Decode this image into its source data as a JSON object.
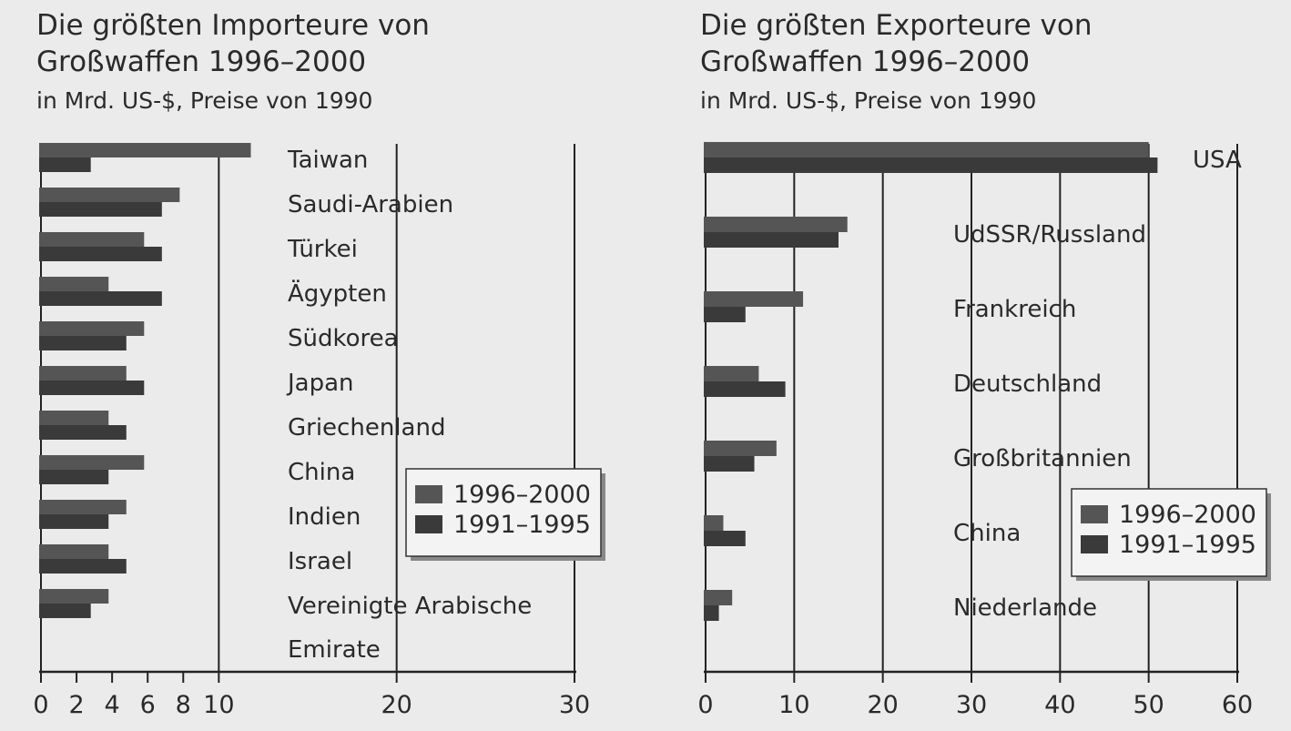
{
  "chart_data": [
    {
      "type": "bar",
      "orientation": "horizontal",
      "title": "Die größten Importeure von Großwaffen 1996–2000",
      "subtitle": "in Mrd. US-$, Preise von 1990",
      "categories": [
        "Taiwan",
        "Saudi-Arabien",
        "Türkei",
        "Ägypten",
        "Südkorea",
        "Japan",
        "Griechenland",
        "China",
        "Indien",
        "Israel",
        "Vereinigte Arabische Emirate"
      ],
      "category_label_lines": [
        [
          "Taiwan"
        ],
        [
          "Saudi-Arabien"
        ],
        [
          "Türkei"
        ],
        [
          "Ägypten"
        ],
        [
          "Südkorea"
        ],
        [
          "Japan"
        ],
        [
          "Griechenland"
        ],
        [
          "China"
        ],
        [
          "Indien"
        ],
        [
          "Israel"
        ],
        [
          "Vereinigte  Arabische",
          "Emirate"
        ]
      ],
      "series": [
        {
          "name": "1996–2000",
          "values": [
            11.8,
            7.8,
            5.8,
            3.8,
            5.8,
            4.8,
            3.8,
            5.8,
            4.8,
            3.8,
            3.8
          ]
        },
        {
          "name": "1991–1995",
          "values": [
            2.8,
            6.8,
            6.8,
            6.8,
            4.8,
            5.8,
            4.8,
            3.8,
            3.8,
            4.8,
            2.8
          ]
        }
      ],
      "xlim": [
        0,
        30
      ],
      "xticks": [
        "0",
        "2",
        "4",
        "6",
        "8",
        "10",
        "20",
        "30"
      ],
      "xtick_values": [
        0,
        2,
        4,
        6,
        8,
        10,
        20,
        30
      ],
      "gridlines_at": [
        10,
        20,
        30
      ],
      "legend_position": "lower-right",
      "series_colors": [
        "#555555",
        "#3a3a3a"
      ]
    },
    {
      "type": "bar",
      "orientation": "horizontal",
      "title": "Die größten Exporteure von Großwaffen 1996–2000",
      "subtitle": "in Mrd. US-$, Preise von 1990",
      "categories": [
        "USA",
        "UdSSR/Russland",
        "Frankreich",
        "Deutschland",
        "Großbritannien",
        "China",
        "Niederlande"
      ],
      "category_label_lines": [
        [
          "USA"
        ],
        [
          "UdSSR/Russland"
        ],
        [
          "Frankreich"
        ],
        [
          "Deutschland"
        ],
        [
          "Großbritannien"
        ],
        [
          "China"
        ],
        [
          "Niederlande"
        ]
      ],
      "series": [
        {
          "name": "1996–2000",
          "values": [
            50,
            16,
            11,
            6,
            8,
            2,
            3
          ]
        },
        {
          "name": "1991–1995",
          "values": [
            51,
            15,
            4.5,
            9,
            5.5,
            4.5,
            1.5
          ]
        }
      ],
      "xlim": [
        0,
        60
      ],
      "xticks": [
        "0",
        "10",
        "20",
        "30",
        "40",
        "50",
        "60"
      ],
      "xtick_values": [
        0,
        10,
        20,
        30,
        40,
        50,
        60
      ],
      "gridlines_at": [
        10,
        20,
        30,
        40,
        50,
        60
      ],
      "legend_position": "lower-right",
      "series_colors": [
        "#555555",
        "#3a3a3a"
      ]
    }
  ]
}
